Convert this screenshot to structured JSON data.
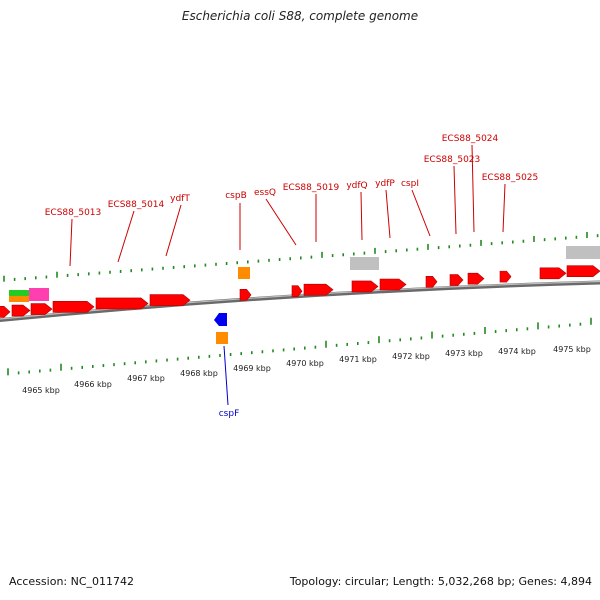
{
  "title": "Escherichia coli S88, complete genome",
  "footer": {
    "accession": "Accession: NC_011742",
    "summary": "Topology: circular; Length: 5,032,268 bp; Genes: 4,894"
  },
  "colors": {
    "forward_gene": "#ff0000",
    "reverse_gene": "#0000ee",
    "forward_label": "#cc0000",
    "reverse_label": "#0000cc",
    "rna": "#ff8c00",
    "pseudo": "#c0c0c0",
    "magenta": "#ff3fb0",
    "green": "#22cc22",
    "ticks": "#228b22",
    "backbone": "#808080"
  },
  "genes": {
    "forward": [
      "ECS88_5013",
      "ECS88_5014",
      "ydfT",
      "cspB",
      "essQ",
      "ECS88_5019",
      "ydfQ",
      "ydfP",
      "cspI",
      "ECS88_5023",
      "ECS88_5024",
      "ECS88_5025"
    ],
    "reverse": [
      "cspF"
    ]
  },
  "axis": {
    "unit": "kbp",
    "labels": [
      "4965 kbp",
      "4966 kbp",
      "4967 kbp",
      "4968 kbp",
      "4969 kbp",
      "4970 kbp",
      "4971 kbp",
      "4972 kbp",
      "4973 kbp",
      "4974 kbp",
      "4975 kbp"
    ]
  }
}
